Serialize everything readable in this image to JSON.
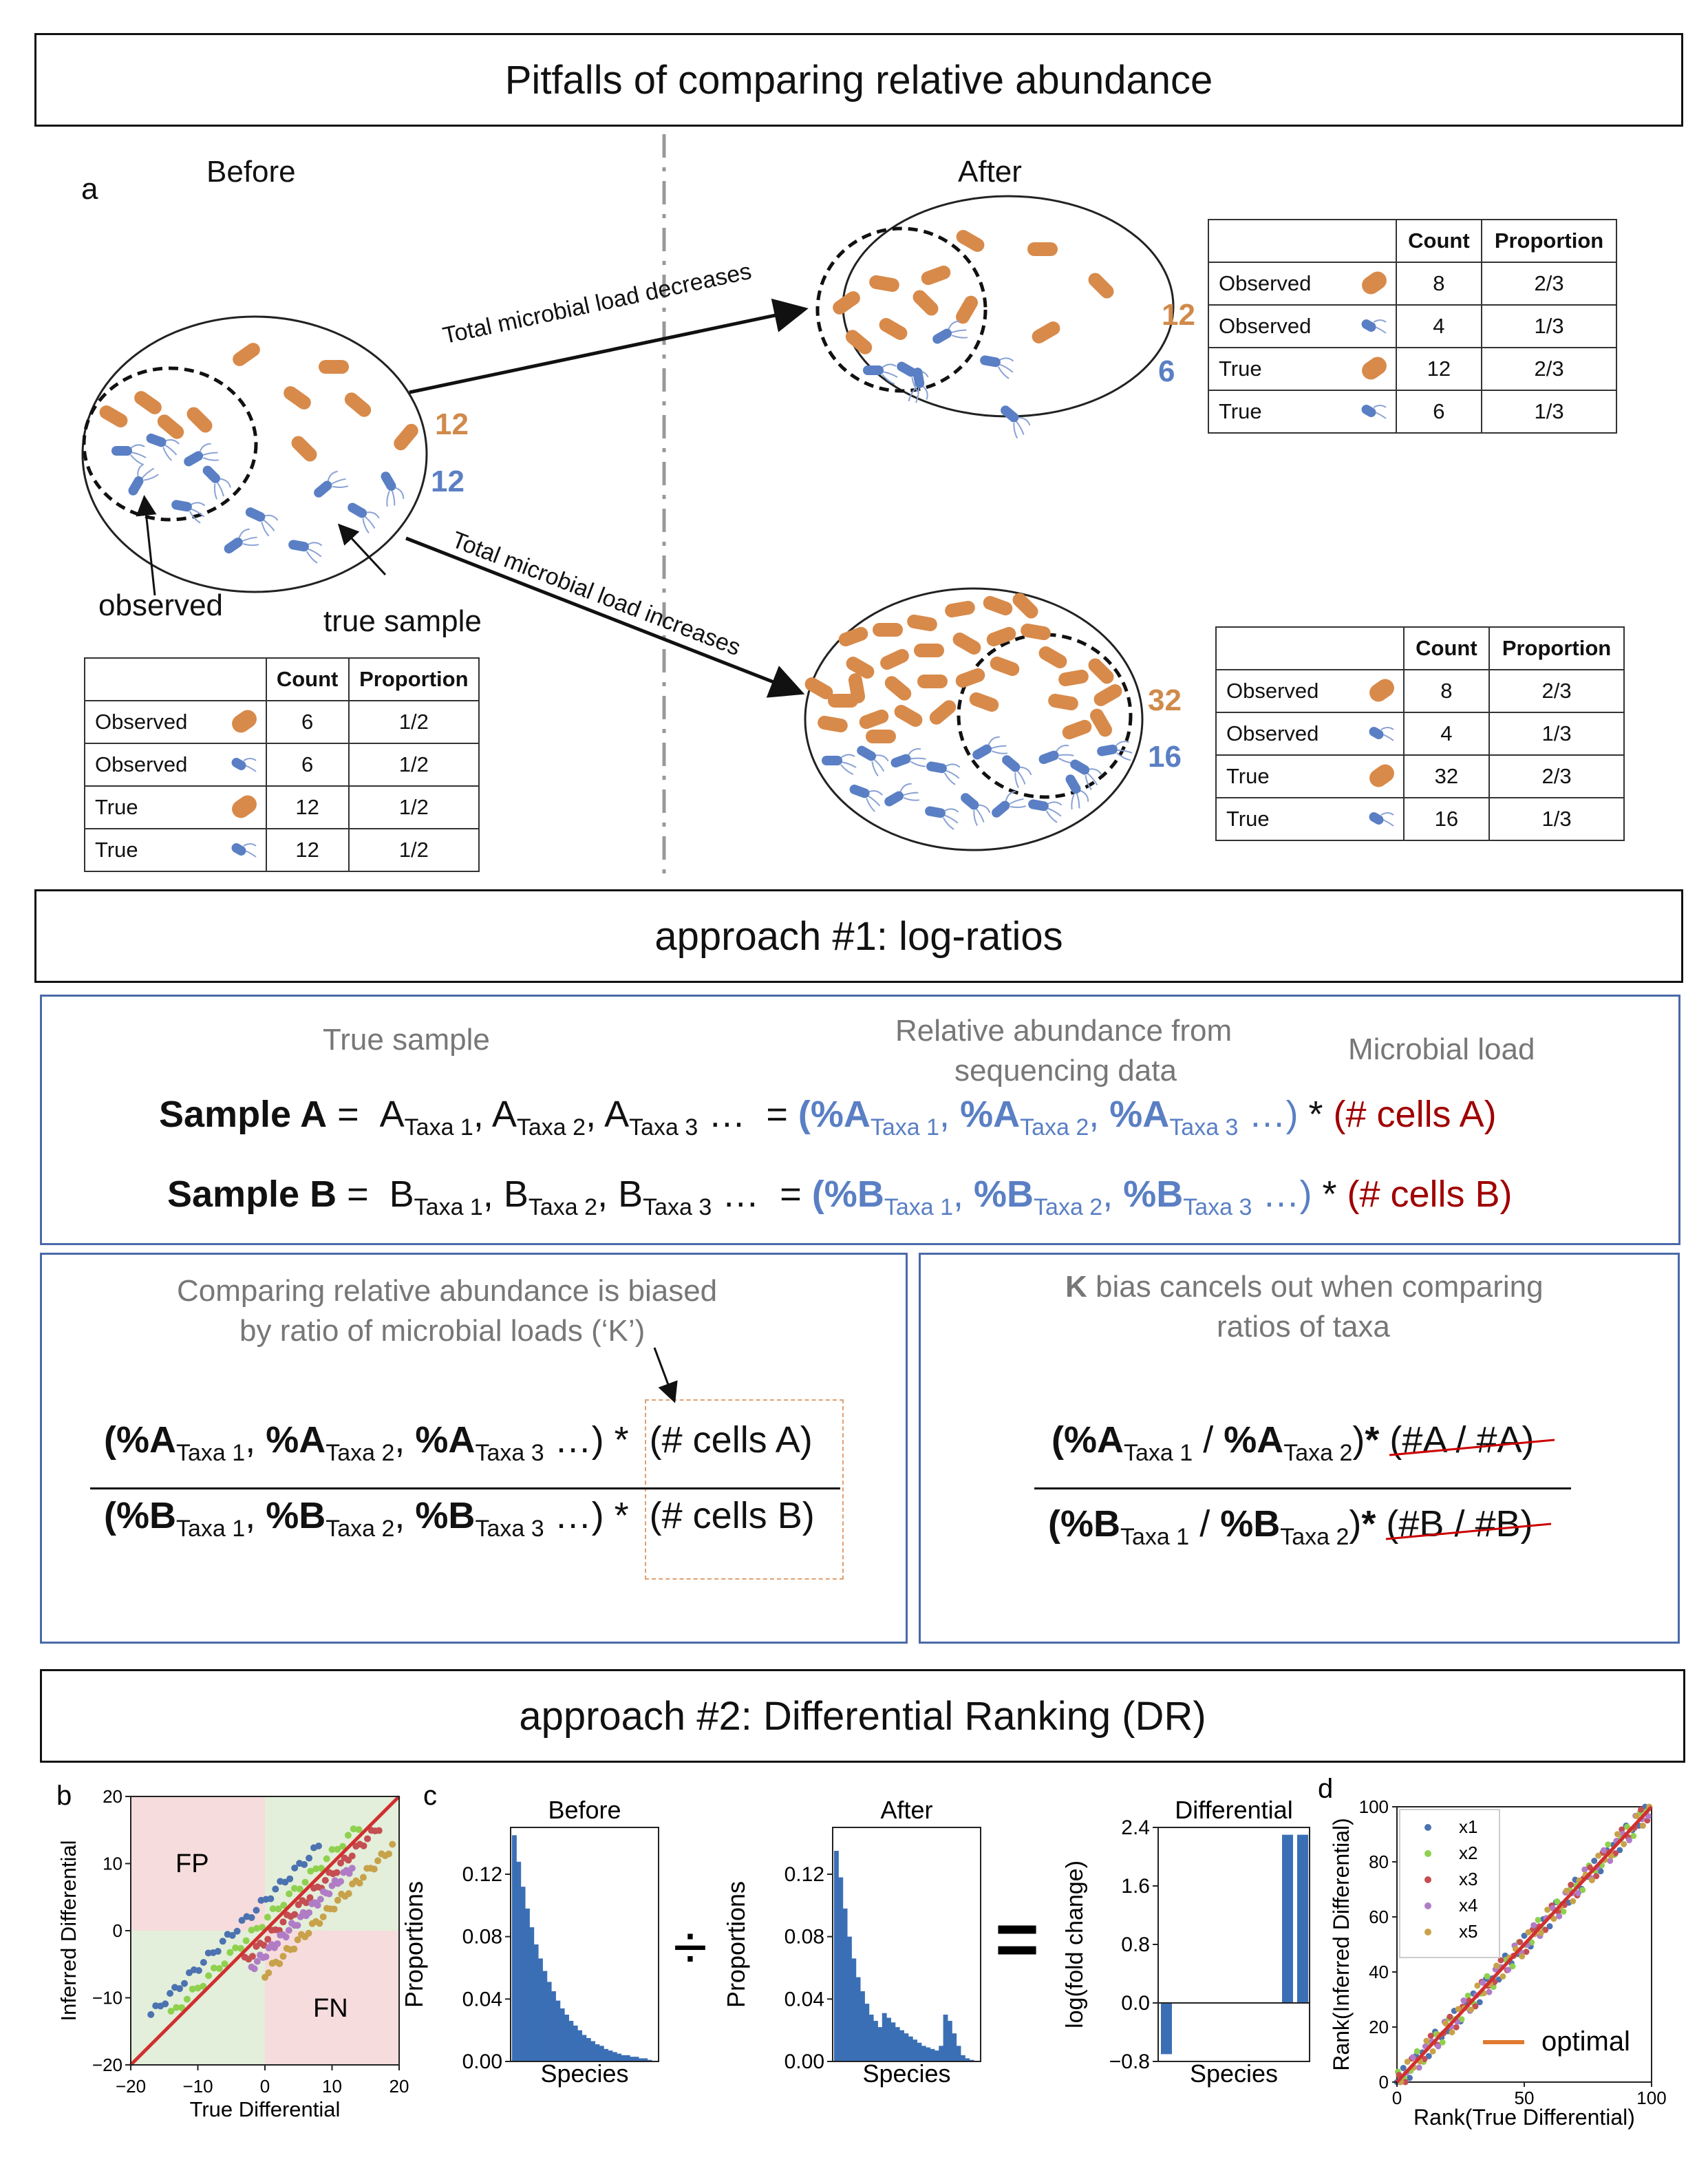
{
  "title": "Pitfalls of comparing relative abundance",
  "panel_a": {
    "letter": "a",
    "before_label": "Before",
    "after_label": "After",
    "observed_label": "observed",
    "true_sample_label": "true sample",
    "arrow_decrease": "Total microbial load decreases",
    "arrow_increase": "Total microbial load increases",
    "before_counts": {
      "orange": "12",
      "blue": "12"
    },
    "after_top_counts": {
      "orange": "12",
      "blue": "6"
    },
    "after_bottom_counts": {
      "orange": "32",
      "blue": "16"
    },
    "table_headers": [
      "Count",
      "Proportion"
    ],
    "row_labels": [
      "Observed",
      "Observed",
      "True",
      "True"
    ],
    "before_table": [
      [
        "6",
        "1/2"
      ],
      [
        "6",
        "1/2"
      ],
      [
        "12",
        "1/2"
      ],
      [
        "12",
        "1/2"
      ]
    ],
    "top_table": [
      [
        "8",
        "2/3"
      ],
      [
        "4",
        "1/3"
      ],
      [
        "12",
        "2/3"
      ],
      [
        "6",
        "1/3"
      ]
    ],
    "bottom_table": [
      [
        "8",
        "2/3"
      ],
      [
        "4",
        "1/3"
      ],
      [
        "32",
        "2/3"
      ],
      [
        "16",
        "1/3"
      ]
    ]
  },
  "approach1": {
    "title": "approach #1: log-ratios",
    "true_sample": "True sample",
    "rel_abundance_1": "Relative abundance from",
    "rel_abundance_2": "sequencing data",
    "microbial_load": "Microbial load",
    "sample_a": "Sample A",
    "sample_b": "Sample B",
    "cells_a": "(# cells A)",
    "cells_b": "(# cells B)",
    "biased_1": "Comparing relative abundance is biased",
    "biased_2": "by ratio of microbial loads (‘K’)",
    "cancel_k": "K",
    "cancel_1": "bias cancels out when comparing",
    "cancel_2": "ratios of taxa"
  },
  "approach2": {
    "title": "approach #2: Differential Ranking (DR)",
    "panel_b": {
      "letter": "b",
      "xlabel": "True Differential",
      "ylabel": "Inferred Differential",
      "fp": "FP",
      "fn": "FN",
      "ticks": [
        "−20",
        "−10",
        "0",
        "10",
        "20"
      ]
    },
    "panel_c": {
      "letter": "c",
      "before_title": "Before",
      "after_title": "After",
      "diff_title": "Differential",
      "xlabel": "Species",
      "ylabel": "Proportions",
      "diff_ylabel": "log(fold change)",
      "prop_ticks": [
        "0.00",
        "0.04",
        "0.08",
        "0.12"
      ],
      "diff_ticks": [
        "−0.8",
        "0.0",
        "0.8",
        "1.6",
        "2.4"
      ]
    },
    "panel_d": {
      "letter": "d",
      "xlabel": "Rank(True Differential)",
      "ylabel": "Rank(Inferred Differential)",
      "xticks": [
        "0",
        "50",
        "100"
      ],
      "yticks": [
        "0",
        "20",
        "40",
        "60",
        "80",
        "100"
      ],
      "legend": [
        "x1",
        "x2",
        "x3",
        "x4",
        "x5"
      ],
      "optimal": "optimal",
      "legend_colors": [
        "#4c72b0",
        "#8fd14f",
        "#c44e52",
        "#b07cc6",
        "#c8a24a"
      ]
    }
  },
  "chart_data": [
    {
      "type": "scatter",
      "xlabel": "True Differential",
      "ylabel": "Inferred Differential",
      "xlim": [
        -20,
        20
      ],
      "ylim": [
        -20,
        20
      ],
      "series": [
        {
          "offset": 4.5
        },
        {
          "offset": 1.5
        },
        {
          "offset": -1.5
        },
        {
          "offset": -3.5
        },
        {
          "offset": -6.5
        }
      ]
    },
    {
      "type": "bar",
      "title": "Before",
      "xlabel": "Species",
      "ylabel": "Proportions",
      "ylim": [
        0,
        0.15
      ],
      "values": [
        0.145,
        0.128,
        0.112,
        0.098,
        0.086,
        0.075,
        0.066,
        0.058,
        0.051,
        0.045,
        0.039,
        0.034,
        0.03,
        0.026,
        0.023,
        0.02,
        0.017,
        0.015,
        0.013,
        0.011,
        0.01,
        0.008,
        0.007,
        0.006,
        0.005,
        0.004,
        0.004,
        0.003,
        0.003,
        0.002,
        0.002,
        0.001
      ]
    },
    {
      "type": "bar",
      "title": "After",
      "xlabel": "Species",
      "ylabel": "Proportions",
      "ylim": [
        0,
        0.15
      ],
      "values": [
        0.135,
        0.118,
        0.098,
        0.08,
        0.066,
        0.054,
        0.045,
        0.037,
        0.03,
        0.026,
        0.022,
        0.031,
        0.028,
        0.025,
        0.022,
        0.02,
        0.018,
        0.016,
        0.014,
        0.012,
        0.01,
        0.009,
        0.008,
        0.007,
        0.01,
        0.03,
        0.026,
        0.018,
        0.01,
        0.004,
        0.002,
        0.001
      ]
    },
    {
      "type": "bar",
      "title": "Differential",
      "xlabel": "Species",
      "ylabel": "log(fold change)",
      "ylim": [
        -0.8,
        2.4
      ],
      "values": [
        -0.7,
        0,
        0,
        0,
        0,
        0,
        0,
        0,
        2.3,
        2.3
      ]
    },
    {
      "type": "scatter",
      "xlabel": "Rank(True Differential)",
      "ylabel": "Rank(Inferred Differential)",
      "xlim": [
        0,
        100
      ],
      "ylim": [
        0,
        100
      ],
      "series": [
        {
          "name": "x1"
        },
        {
          "name": "x2"
        },
        {
          "name": "x3"
        },
        {
          "name": "x4"
        },
        {
          "name": "x5"
        },
        {
          "name": "optimal"
        }
      ]
    }
  ]
}
